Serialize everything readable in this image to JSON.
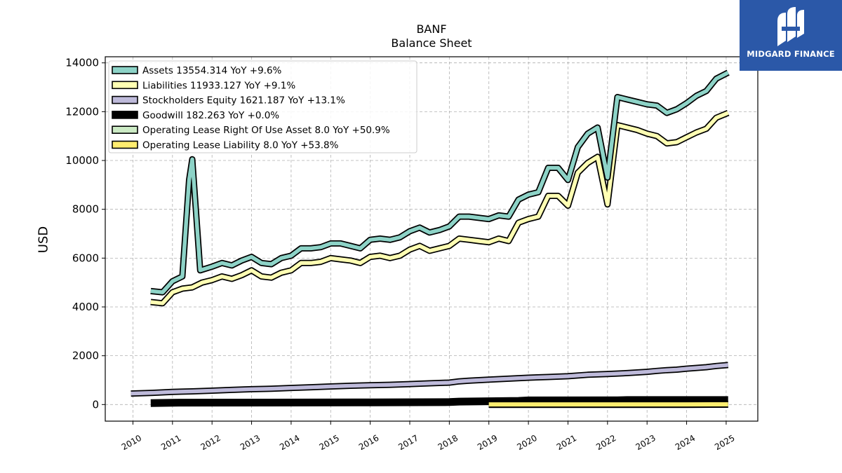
{
  "header": {
    "ticker": "BANF",
    "subtitle": "Balance  Sheet"
  },
  "logo": {
    "name": "MIDGARD FINANCE",
    "icon": "midgard-logo-icon",
    "color": "#2b58a8"
  },
  "chart_data": {
    "type": "line",
    "title": "BANF",
    "subtitle": "Balance  Sheet",
    "xlabel": "",
    "ylabel": "USD",
    "xlim": [
      2009.3,
      2025.8
    ],
    "ylim": [
      -680,
      14250
    ],
    "yticks": [
      0,
      2000,
      4000,
      6000,
      8000,
      10000,
      12000,
      14000
    ],
    "xticks": [
      2010,
      2011,
      2012,
      2013,
      2014,
      2015,
      2016,
      2017,
      2018,
      2019,
      2020,
      2021,
      2022,
      2023,
      2024,
      2025
    ],
    "grid": true,
    "legend_position": "top-left",
    "series": [
      {
        "name": "Assets",
        "legend": "Assets  13554.314 YoY +9.6%",
        "color": "#8dd3c7",
        "x": [
          2010.45,
          2010.75,
          2011.0,
          2011.25,
          2011.42,
          2011.5,
          2011.7,
          2012.0,
          2012.25,
          2012.5,
          2012.75,
          2013.0,
          2013.25,
          2013.5,
          2013.75,
          2014.0,
          2014.25,
          2014.5,
          2014.75,
          2015.0,
          2015.25,
          2015.5,
          2015.75,
          2016.0,
          2016.25,
          2016.5,
          2016.75,
          2017.0,
          2017.25,
          2017.5,
          2017.75,
          2018.0,
          2018.25,
          2018.5,
          2018.75,
          2019.0,
          2019.25,
          2019.5,
          2019.75,
          2020.0,
          2020.25,
          2020.5,
          2020.75,
          2021.0,
          2021.25,
          2021.5,
          2021.75,
          2022.0,
          2022.25,
          2022.5,
          2022.75,
          2023.0,
          2023.25,
          2023.5,
          2023.75,
          2024.0,
          2024.25,
          2024.5,
          2024.75,
          2025.05
        ],
        "values": [
          4650,
          4600,
          5050,
          5250,
          9200,
          10050,
          5500,
          5650,
          5800,
          5700,
          5900,
          6050,
          5800,
          5750,
          6000,
          6100,
          6400,
          6400,
          6450,
          6600,
          6600,
          6500,
          6400,
          6750,
          6800,
          6750,
          6850,
          7100,
          7250,
          7050,
          7150,
          7300,
          7700,
          7700,
          7650,
          7600,
          7750,
          7700,
          8400,
          8600,
          8700,
          9700,
          9700,
          9200,
          10550,
          11100,
          11350,
          9300,
          12600,
          12500,
          12400,
          12300,
          12250,
          11950,
          12100,
          12350,
          12650,
          12850,
          13350,
          13600
        ]
      },
      {
        "name": "Liabilities",
        "legend": "Liabilities  11933.127 YoY +9.1%",
        "color": "#ffffb3",
        "x": [
          2010.45,
          2010.75,
          2011.0,
          2011.25,
          2011.5,
          2011.75,
          2012.0,
          2012.25,
          2012.5,
          2012.75,
          2013.0,
          2013.25,
          2013.5,
          2013.75,
          2014.0,
          2014.25,
          2014.5,
          2014.75,
          2015.0,
          2015.25,
          2015.5,
          2015.75,
          2016.0,
          2016.25,
          2016.5,
          2016.75,
          2017.0,
          2017.25,
          2017.5,
          2017.75,
          2018.0,
          2018.25,
          2018.5,
          2018.75,
          2019.0,
          2019.25,
          2019.5,
          2019.75,
          2020.0,
          2020.25,
          2020.5,
          2020.75,
          2021.0,
          2021.25,
          2021.5,
          2021.75,
          2022.0,
          2022.25,
          2022.5,
          2022.75,
          2023.0,
          2023.25,
          2023.5,
          2023.75,
          2024.0,
          2024.25,
          2024.5,
          2024.75,
          2025.05
        ],
        "values": [
          4200,
          4150,
          4600,
          4750,
          4800,
          5000,
          5100,
          5250,
          5150,
          5300,
          5500,
          5250,
          5200,
          5400,
          5500,
          5800,
          5800,
          5850,
          6000,
          5950,
          5900,
          5800,
          6050,
          6100,
          6000,
          6100,
          6350,
          6500,
          6300,
          6400,
          6500,
          6800,
          6750,
          6700,
          6650,
          6800,
          6700,
          7450,
          7600,
          7700,
          8550,
          8550,
          8150,
          9500,
          9900,
          10150,
          8200,
          11450,
          11350,
          11250,
          11100,
          11000,
          10700,
          10750,
          10950,
          11150,
          11300,
          11750,
          11950
        ]
      },
      {
        "name": "Stockholders Equity",
        "legend": "Stockholders Equity  1621.187 YoY +13.1%",
        "color": "#bebada",
        "x": [
          2009.95,
          2010.5,
          2011.0,
          2011.5,
          2012.0,
          2012.5,
          2013.0,
          2013.5,
          2014.0,
          2014.5,
          2015.0,
          2015.5,
          2016.0,
          2016.5,
          2017.0,
          2017.5,
          2018.0,
          2018.25,
          2018.5,
          2019.0,
          2019.5,
          2020.0,
          2020.5,
          2021.0,
          2021.5,
          2022.0,
          2022.5,
          2023.0,
          2023.25,
          2023.5,
          2023.75,
          2024.0,
          2024.5,
          2024.75,
          2025.05
        ],
        "values": [
          450,
          480,
          520,
          540,
          570,
          600,
          630,
          650,
          680,
          710,
          740,
          770,
          790,
          810,
          840,
          870,
          900,
          950,
          980,
          1020,
          1060,
          1100,
          1130,
          1160,
          1220,
          1250,
          1290,
          1340,
          1380,
          1410,
          1430,
          1470,
          1530,
          1580,
          1620
        ]
      },
      {
        "name": "Goodwill",
        "legend": "Goodwill  182.263 YoY +0.0%",
        "color": "#000000",
        "x": [
          2010.45,
          2011.0,
          2016.0,
          2018.0,
          2018.25,
          2019.75,
          2020.0,
          2022.25,
          2022.5,
          2025.05
        ],
        "values": [
          60,
          75,
          90,
          100,
          120,
          150,
          170,
          175,
          185,
          185
        ]
      },
      {
        "name": "Operating Lease Right Of Use Asset",
        "legend": "Operating Lease Right Of Use Asset  8.0 YoY +50.9%",
        "color": "#ccebc5",
        "x": [
          2019.0,
          2020.0,
          2021.0,
          2022.0,
          2023.0,
          2024.0,
          2025.05
        ],
        "values": [
          6,
          6,
          5,
          5,
          5,
          6,
          8
        ]
      },
      {
        "name": "Operating Lease Liability",
        "legend": "Operating Lease Liability  8.0 YoY +53.8%",
        "color": "#ffed6f",
        "x": [
          2019.0,
          2020.0,
          2021.0,
          2022.0,
          2023.0,
          2024.0,
          2025.05
        ],
        "values": [
          6,
          6,
          5,
          5,
          5,
          6,
          8
        ]
      }
    ]
  }
}
